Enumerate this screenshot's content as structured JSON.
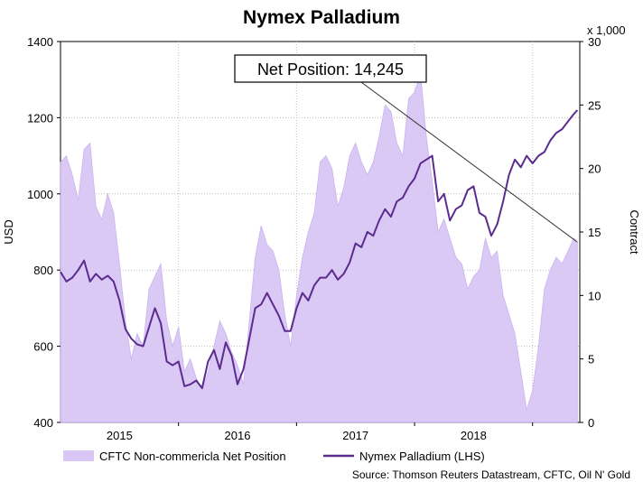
{
  "chart_data": {
    "type": "line+area",
    "title": "Nymex Palladium",
    "ylabel_left": "USD",
    "ylabel_right": "Contract",
    "right_axis_multiplier": "x 1,000",
    "ylim_left": [
      400,
      1400
    ],
    "ylim_right": [
      0,
      30
    ],
    "yticks_left": [
      400,
      600,
      800,
      1000,
      1200,
      1400
    ],
    "yticks_right": [
      0,
      5,
      10,
      15,
      20,
      25,
      30
    ],
    "x_range": [
      2014.5,
      2018.9
    ],
    "x_tick_labels": [
      {
        "x": 2015.0,
        "label": "2015"
      },
      {
        "x": 2016.0,
        "label": "2016"
      },
      {
        "x": 2017.0,
        "label": "2017"
      },
      {
        "x": 2018.0,
        "label": "2018"
      }
    ],
    "x_gridlines": [
      2015.5,
      2016.5,
      2017.5,
      2018.5
    ],
    "grid": true,
    "annotation": {
      "text": "Net Position: 14,245",
      "points_to": {
        "x": 2018.88,
        "y_right": 14.2
      }
    },
    "legend": {
      "placement": "bottom",
      "entries": [
        "CFTC Non-commericla Net Position",
        "Nymex Palladium (LHS)"
      ]
    },
    "source": "Source: Thomson Reuters Datastream, CFTC, Oil N' Gold",
    "series": [
      {
        "name": "CFTC Non-commericla Net Position",
        "axis": "right",
        "style": "area",
        "color": "#d9c6f5",
        "x": [
          2014.5,
          2014.55,
          2014.6,
          2014.65,
          2014.7,
          2014.75,
          2014.8,
          2014.85,
          2014.9,
          2014.95,
          2015.0,
          2015.05,
          2015.1,
          2015.15,
          2015.2,
          2015.25,
          2015.3,
          2015.35,
          2015.4,
          2015.45,
          2015.5,
          2015.55,
          2015.6,
          2015.65,
          2015.7,
          2015.75,
          2015.8,
          2015.85,
          2015.9,
          2015.95,
          2016.0,
          2016.05,
          2016.1,
          2016.15,
          2016.2,
          2016.25,
          2016.3,
          2016.35,
          2016.4,
          2016.45,
          2016.5,
          2016.55,
          2016.6,
          2016.65,
          2016.7,
          2016.75,
          2016.8,
          2016.85,
          2016.9,
          2016.95,
          2017.0,
          2017.05,
          2017.1,
          2017.15,
          2017.2,
          2017.25,
          2017.3,
          2017.35,
          2017.4,
          2017.45,
          2017.5,
          2017.55,
          2017.6,
          2017.65,
          2017.7,
          2017.75,
          2017.8,
          2017.85,
          2017.9,
          2017.95,
          2018.0,
          2018.05,
          2018.1,
          2018.15,
          2018.2,
          2018.25,
          2018.3,
          2018.35,
          2018.4,
          2018.45,
          2018.5,
          2018.55,
          2018.6,
          2018.65,
          2018.7,
          2018.75,
          2018.8,
          2018.85,
          2018.88
        ],
        "values": [
          20.5,
          21.0,
          19.5,
          17.5,
          21.5,
          22.0,
          17.0,
          16.0,
          18.0,
          16.5,
          12.5,
          8.0,
          5.0,
          7.0,
          6.0,
          10.5,
          11.5,
          12.5,
          8.0,
          6.0,
          7.5,
          4.0,
          5.0,
          3.5,
          2.5,
          4.0,
          6.0,
          8.0,
          7.0,
          5.5,
          4.5,
          3.0,
          8.0,
          13.0,
          15.5,
          14.0,
          13.5,
          12.0,
          8.5,
          6.0,
          10.0,
          13.0,
          15.0,
          16.5,
          20.5,
          21.0,
          20.0,
          17.0,
          18.5,
          21.0,
          22.0,
          20.5,
          19.5,
          20.5,
          22.5,
          25.0,
          24.5,
          22.0,
          21.0,
          25.5,
          26.0,
          27.5,
          22.5,
          19.0,
          15.0,
          16.0,
          14.5,
          13.0,
          12.5,
          10.5,
          11.5,
          12.0,
          14.5,
          13.0,
          13.5,
          10.0,
          8.5,
          7.0,
          4.0,
          1.0,
          2.5,
          6.0,
          10.5,
          12.0,
          13.0,
          12.5,
          13.5,
          14.5,
          14.2
        ]
      },
      {
        "name": "Nymex Palladium (LHS)",
        "axis": "left",
        "style": "line",
        "color": "#5b2c8e",
        "x": [
          2014.5,
          2014.55,
          2014.6,
          2014.65,
          2014.7,
          2014.75,
          2014.8,
          2014.85,
          2014.9,
          2014.95,
          2015.0,
          2015.05,
          2015.1,
          2015.15,
          2015.2,
          2015.25,
          2015.3,
          2015.35,
          2015.4,
          2015.45,
          2015.5,
          2015.55,
          2015.6,
          2015.65,
          2015.7,
          2015.75,
          2015.8,
          2015.85,
          2015.9,
          2015.95,
          2016.0,
          2016.05,
          2016.1,
          2016.15,
          2016.2,
          2016.25,
          2016.3,
          2016.35,
          2016.4,
          2016.45,
          2016.5,
          2016.55,
          2016.6,
          2016.65,
          2016.7,
          2016.75,
          2016.8,
          2016.85,
          2016.9,
          2016.95,
          2017.0,
          2017.05,
          2017.1,
          2017.15,
          2017.2,
          2017.25,
          2017.3,
          2017.35,
          2017.4,
          2017.45,
          2017.5,
          2017.55,
          2017.6,
          2017.65,
          2017.7,
          2017.75,
          2017.8,
          2017.85,
          2017.9,
          2017.95,
          2018.0,
          2018.05,
          2018.1,
          2018.15,
          2018.2,
          2018.25,
          2018.3,
          2018.35,
          2018.4,
          2018.45,
          2018.5,
          2018.55,
          2018.6,
          2018.65,
          2018.7,
          2018.75,
          2018.8,
          2018.85,
          2018.88
        ],
        "values": [
          795,
          770,
          780,
          800,
          825,
          770,
          790,
          775,
          785,
          770,
          720,
          645,
          620,
          605,
          600,
          650,
          700,
          660,
          560,
          550,
          560,
          495,
          500,
          510,
          490,
          560,
          590,
          540,
          610,
          575,
          500,
          540,
          620,
          700,
          710,
          740,
          710,
          680,
          640,
          640,
          700,
          740,
          720,
          760,
          780,
          780,
          800,
          775,
          790,
          820,
          870,
          860,
          900,
          890,
          930,
          960,
          940,
          980,
          990,
          1020,
          1040,
          1080,
          1090,
          1100,
          980,
          1000,
          930,
          960,
          970,
          1010,
          1020,
          950,
          940,
          890,
          920,
          980,
          1050,
          1090,
          1070,
          1100,
          1080,
          1100,
          1110,
          1140,
          1160,
          1170,
          1190,
          1210,
          1220
        ]
      }
    ]
  }
}
